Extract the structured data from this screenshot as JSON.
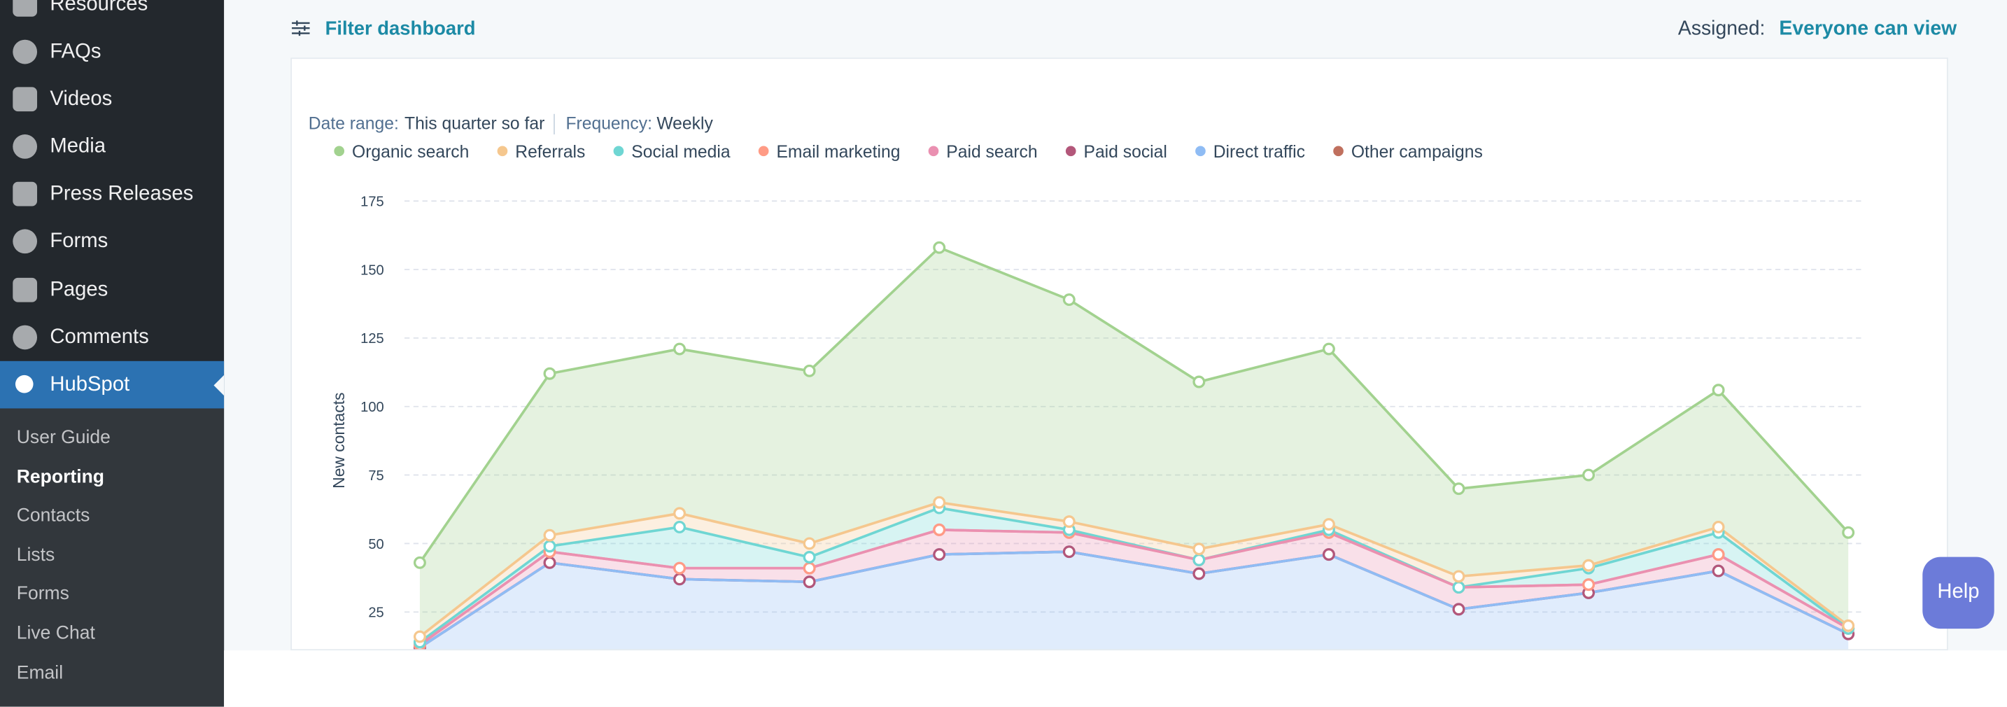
{
  "sidebar": {
    "top_items": [
      "Resources",
      "FAQs",
      "Videos",
      "Media",
      "Press Releases",
      "Forms",
      "Pages",
      "Comments",
      "HubSpot"
    ],
    "sub_items": [
      "User Guide",
      "Reporting",
      "Contacts",
      "Lists",
      "Forms",
      "Live Chat",
      "Email"
    ]
  },
  "header": {
    "filter": "Filter dashboard",
    "assigned_label": "Assigned:",
    "assigned_value": "Everyone can view"
  },
  "help": "Help",
  "chart_data": {
    "type": "area",
    "stacked": true,
    "filters": {
      "date_range_label": "Date range:",
      "date_range": "This quarter so far",
      "frequency_label": "Frequency:",
      "frequency": "Weekly"
    },
    "ylabel": "New contacts",
    "ylim": [
      0,
      175
    ],
    "yticks": [
      25,
      50,
      75,
      100,
      125,
      150,
      175
    ],
    "grid": true,
    "series": [
      {
        "name": "Organic search",
        "color": "#a2d28f",
        "values": [
          27,
          59,
          60,
          63,
          93,
          81,
          61,
          64,
          32,
          33,
          50,
          34
        ]
      },
      {
        "name": "Referrals",
        "color": "#f5c78e",
        "values": [
          2,
          4,
          5,
          5,
          2,
          3,
          4,
          2,
          4,
          1,
          2,
          1
        ]
      },
      {
        "name": "Social media",
        "color": "#6fd6d3",
        "values": [
          1,
          2,
          15,
          4,
          8,
          1,
          0,
          1,
          0,
          6,
          8,
          0
        ]
      },
      {
        "name": "Email marketing",
        "color": "#ff9b85",
        "values": [
          0,
          0,
          0,
          0,
          0,
          0,
          0,
          0,
          0,
          0,
          0,
          0
        ]
      },
      {
        "name": "Paid search",
        "color": "#ea90b1",
        "values": [
          1,
          4,
          4,
          5,
          9,
          7,
          5,
          8,
          8,
          3,
          6,
          2
        ]
      },
      {
        "name": "Paid social",
        "color": "#b3577a",
        "values": [
          0,
          0,
          0,
          0,
          0,
          0,
          0,
          0,
          0,
          0,
          0,
          0
        ]
      },
      {
        "name": "Direct traffic",
        "color": "#8fbcf4",
        "values": [
          12,
          43,
          37,
          36,
          46,
          47,
          39,
          46,
          26,
          32,
          40,
          17
        ]
      },
      {
        "name": "Other campaigns",
        "color": "#c0705e",
        "values": [
          0,
          0,
          0,
          0,
          0,
          0,
          0,
          0,
          0,
          0,
          0,
          0
        ]
      }
    ]
  }
}
